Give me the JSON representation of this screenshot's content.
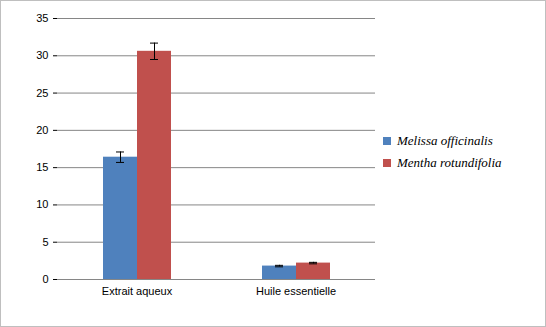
{
  "chart_data": {
    "type": "bar",
    "categories": [
      "Extrait aqueux",
      "Huile essentielle"
    ],
    "series": [
      {
        "name": "Melissa officinalis",
        "color": "#4f81bd",
        "values": [
          16.4,
          1.8
        ],
        "errors": [
          0.7,
          0.1
        ]
      },
      {
        "name": "Mentha rotundifolia",
        "color": "#c0504d",
        "values": [
          30.6,
          2.2
        ],
        "errors": [
          1.1,
          0.1
        ]
      }
    ],
    "ylim": [
      0,
      35
    ],
    "yticks": [
      0,
      5,
      10,
      15,
      20,
      25,
      30,
      35
    ],
    "grid": true,
    "legend": "right"
  }
}
